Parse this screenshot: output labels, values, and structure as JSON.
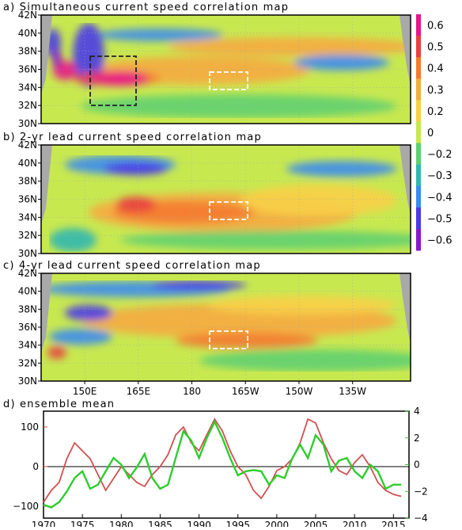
{
  "panels": [
    {
      "title": "a) Simultaneous current speed correlation map"
    },
    {
      "title": "b) 2-yr lead current speed correlation map"
    },
    {
      "title": "c) 4-yr lead current speed correlation map"
    }
  ],
  "map_lat_labels": [
    "42N",
    "40N",
    "38N",
    "36N",
    "34N",
    "32N",
    "30N"
  ],
  "map_lon_labels": [
    "150E",
    "165E",
    "180",
    "165W",
    "150W",
    "135W"
  ],
  "colorbar_labels": [
    "0.6",
    "0.5",
    "0.4",
    "0.3",
    "0.2",
    "0",
    "−0.2",
    "−0.3",
    "−0.4",
    "−0.5",
    "−0.6"
  ],
  "colors": {
    "positive_axis": "#d05050",
    "negative_axis": "#2ecc2e",
    "land": "#a9a9a9",
    "colorbar": [
      "#e8168a",
      "#e84040",
      "#f47a30",
      "#f6ab40",
      "#f8d048",
      "#c8e850",
      "#60d070",
      "#30b8b0",
      "#3a8cf0",
      "#4a3ae8",
      "#8a18c8"
    ]
  },
  "chart_data": {
    "type": "line",
    "title": "d) ensemble mean",
    "x": [
      1970,
      1971,
      1972,
      1973,
      1974,
      1975,
      1976,
      1977,
      1978,
      1979,
      1980,
      1981,
      1982,
      1983,
      1984,
      1985,
      1986,
      1987,
      1988,
      1989,
      1990,
      1991,
      1992,
      1993,
      1994,
      1995,
      1996,
      1997,
      1998,
      1999,
      2000,
      2001,
      2002,
      2003,
      2004,
      2005,
      2006,
      2007,
      2008,
      2009,
      2010,
      2011,
      2012,
      2013,
      2014,
      2015,
      2016
    ],
    "xticks": [
      "1970",
      "1975",
      "1980",
      "1985",
      "1990",
      "1995",
      "2000",
      "2005",
      "2010",
      "2015"
    ],
    "ylim_left": [
      -130,
      140
    ],
    "yticks_left": [
      "100",
      "0",
      "−100"
    ],
    "ylim_right": [
      -4,
      4
    ],
    "yticks_right": [
      "4",
      "2",
      "0",
      "−2",
      "−4"
    ],
    "series": [
      {
        "values": [
          -90,
          -60,
          -40,
          20,
          60,
          40,
          20,
          -20,
          -60,
          -30,
          0,
          -20,
          -40,
          -50,
          -20,
          0,
          30,
          80,
          100,
          60,
          40,
          80,
          120,
          90,
          40,
          0,
          -20,
          -60,
          -80,
          -50,
          -10,
          0,
          20,
          60,
          120,
          110,
          60,
          20,
          -10,
          -20,
          10,
          30,
          0,
          -40,
          -60,
          -70,
          -75
        ]
      },
      {
        "values": [
          -3.0,
          -3.2,
          -2.8,
          -2.0,
          -1.0,
          -0.5,
          -1.8,
          -1.5,
          -0.5,
          0.5,
          0.0,
          -1.0,
          -0.2,
          0.8,
          -1.0,
          -1.8,
          -1.5,
          0.5,
          2.5,
          1.8,
          0.5,
          2.0,
          3.2,
          2.0,
          0.5,
          -0.8,
          -0.5,
          -0.4,
          -0.5,
          -1.5,
          -0.8,
          -1.0,
          0.5,
          1.5,
          0.5,
          2.2,
          1.5,
          -0.5,
          0.3,
          0.5,
          -0.5,
          -1.0,
          0.0,
          -0.5,
          -1.8,
          -1.5,
          -1.5
        ]
      }
    ]
  }
}
